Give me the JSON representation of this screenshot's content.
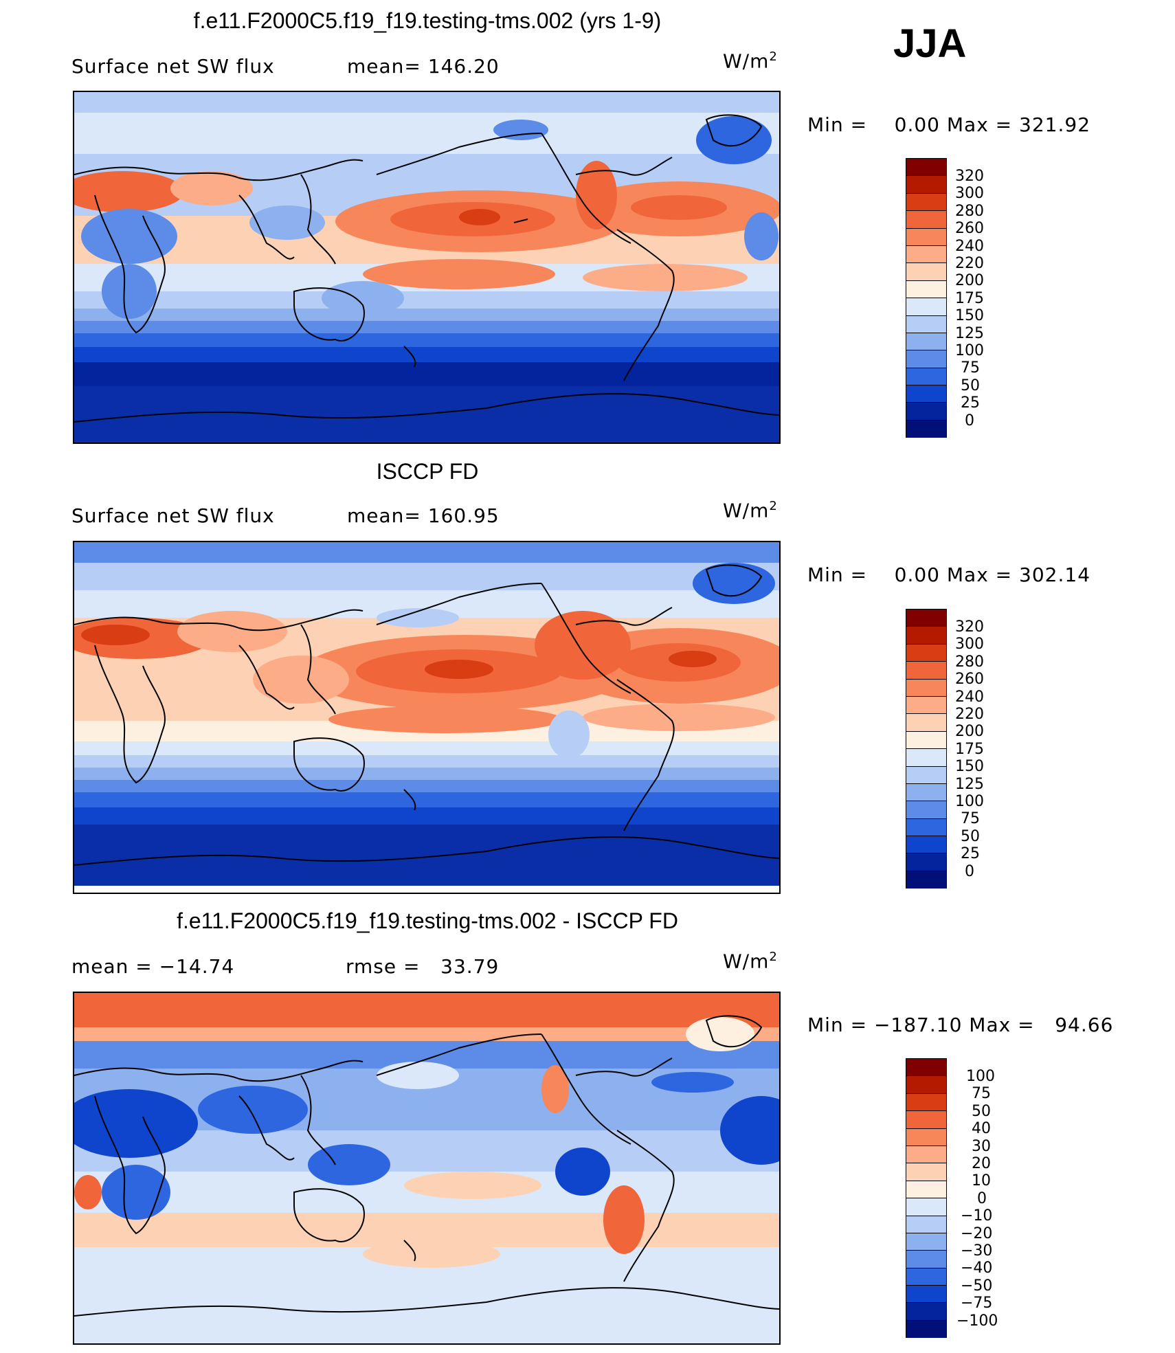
{
  "season": "JJA",
  "panels": [
    {
      "title": "f.e11.F2000C5.f19_f19.testing-tms.002 (yrs 1-9)",
      "left_label": "Surface net SW flux",
      "mid_label": "mean= 146.20",
      "units": "W/m",
      "units_sup": "2",
      "minmax": "Min =    0.00 Max = 321.92",
      "levels": [
        "320",
        "300",
        "280",
        "260",
        "240",
        "220",
        "200",
        "175",
        "150",
        "125",
        "100",
        "75",
        "50",
        "25",
        "0"
      ],
      "colors": [
        "#800000",
        "#b31a00",
        "#d93d14",
        "#f0663a",
        "#f7875a",
        "#fcac86",
        "#fdd2b4",
        "#fdf0e0",
        "#dbe8f9",
        "#b6cef5",
        "#8db0ef",
        "#5c8ce8",
        "#2e66e0",
        "#0f45cc",
        "#04249e",
        "#001078"
      ]
    },
    {
      "title": "ISCCP FD",
      "left_label": "Surface net SW flux",
      "mid_label": "mean= 160.95",
      "units": "W/m",
      "units_sup": "2",
      "minmax": "Min =    0.00 Max = 302.14",
      "levels": [
        "320",
        "300",
        "280",
        "260",
        "240",
        "220",
        "200",
        "175",
        "150",
        "125",
        "100",
        "75",
        "50",
        "25",
        "0"
      ],
      "colors": [
        "#800000",
        "#b31a00",
        "#d93d14",
        "#f0663a",
        "#f7875a",
        "#fcac86",
        "#fdd2b4",
        "#fdf0e0",
        "#dbe8f9",
        "#b6cef5",
        "#8db0ef",
        "#5c8ce8",
        "#2e66e0",
        "#0f45cc",
        "#04249e",
        "#001078"
      ]
    },
    {
      "title": "f.e11.F2000C5.f19_f19.testing-tms.002 - ISCCP FD",
      "left_label": "mean = −14.74",
      "mid_label": "rmse =   33.79",
      "units": "W/m",
      "units_sup": "2",
      "minmax": "Min = −187.10 Max =   94.66",
      "levels": [
        "100",
        "75",
        "50",
        "40",
        "30",
        "20",
        "10",
        "0",
        "−10",
        "−20",
        "−30",
        "−40",
        "−50",
        "−75",
        "−100"
      ],
      "colors": [
        "#800000",
        "#b31a00",
        "#d93d14",
        "#f0663a",
        "#f7875a",
        "#fcac86",
        "#fdd2b4",
        "#fdf0e0",
        "#dbe8f9",
        "#b6cef5",
        "#8db0ef",
        "#5c8ce8",
        "#2e66e0",
        "#0f45cc",
        "#04249e",
        "#001078"
      ]
    }
  ]
}
